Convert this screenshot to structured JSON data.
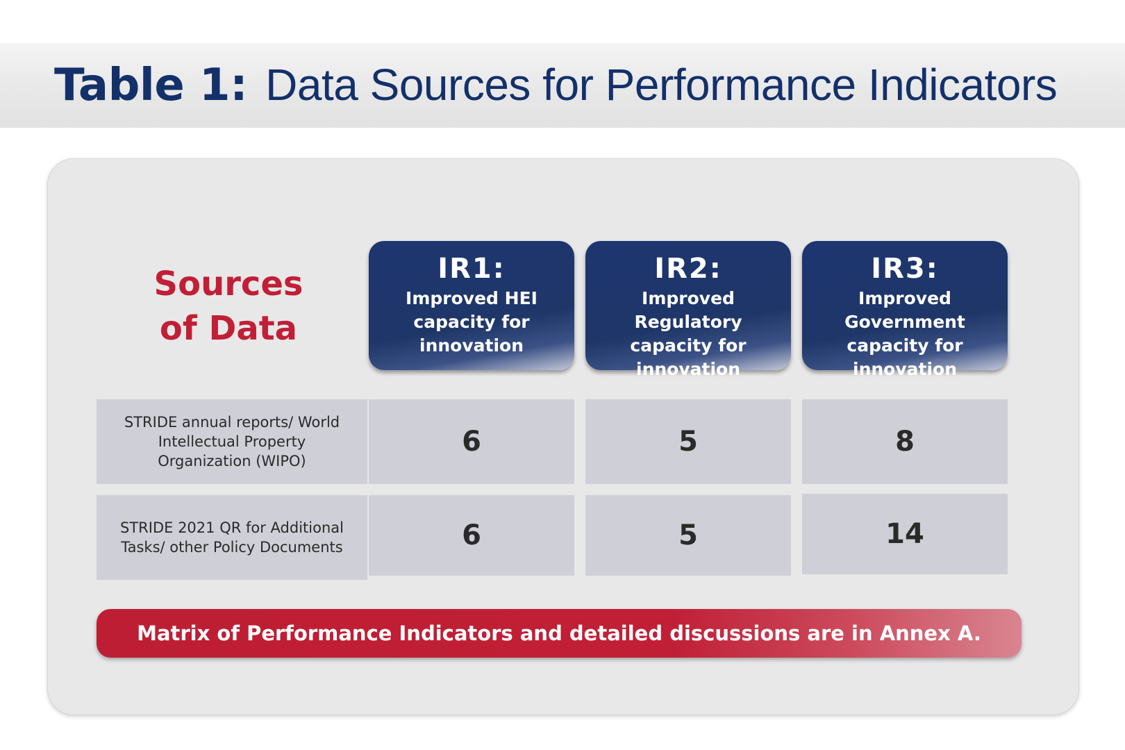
{
  "title": {
    "lead": "Table 1:",
    "rest": "Data Sources for Performance Indicators"
  },
  "table": {
    "corner_label": [
      "Sources",
      "of Data"
    ],
    "columns": [
      {
        "code": "IR1:",
        "description": "Improved HEI capacity for innovation"
      },
      {
        "code": "IR2:",
        "description": "Improved Regulatory capacity for innovation"
      },
      {
        "code": "IR3:",
        "description": "Improved Government capacity for innovation"
      }
    ],
    "rows": [
      {
        "source": "STRIDE annual reports/ World Intellectual Property Organization (WIPO)",
        "values": [
          "6",
          "5",
          "8"
        ]
      },
      {
        "source": "STRIDE 2021 QR for Additional Tasks/ other Policy Documents",
        "values": [
          "6",
          "5",
          "14"
        ]
      }
    ]
  },
  "footer_note": "Matrix of Performance Indicators and detailed discussions are in Annex A.",
  "colors": {
    "navy": "#1e3668",
    "red": "#c11f36",
    "cell_gray": "#cfd0d7",
    "panel_gray": "#e8e8e8"
  }
}
